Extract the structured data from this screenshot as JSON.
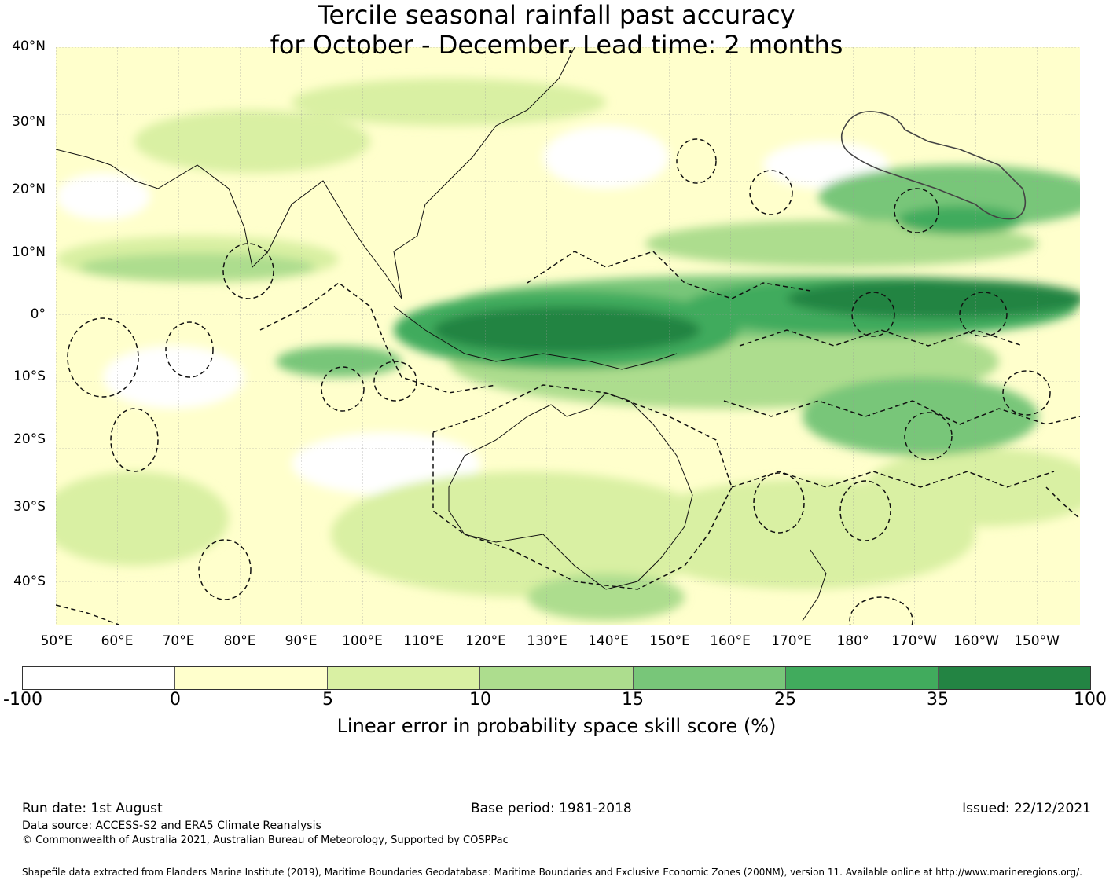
{
  "title": {
    "line1": "Tercile seasonal rainfall past accuracy",
    "line2": "for October - December. Lead time: 2 months"
  },
  "map": {
    "lat_labels": [
      "40°N",
      "30°N",
      "20°N",
      "10°N",
      "0°",
      "10°S",
      "20°S",
      "30°S",
      "40°S"
    ],
    "lon_labels": [
      "50°E",
      "60°E",
      "70°E",
      "80°E",
      "90°E",
      "100°E",
      "110°E",
      "120°E",
      "130°E",
      "140°E",
      "150°E",
      "160°E",
      "170°E",
      "180°",
      "170°W",
      "160°W",
      "150°W"
    ]
  },
  "colorbar": {
    "ticks": [
      "-100",
      "0",
      "5",
      "10",
      "15",
      "25",
      "35",
      "100"
    ],
    "colors": [
      "#ffffff",
      "#ffffcc",
      "#d9f0a3",
      "#addd8e",
      "#78c679",
      "#41ab5d",
      "#238443"
    ],
    "label": "Linear error in probability space skill score (%)"
  },
  "footer": {
    "run_date": "Run date: 1st August",
    "base_period": "Base period: 1981-2018",
    "issued": "Issued: 22/12/2021",
    "data_source": "Data source: ACCESS-S2 and ERA5 Climate Reanalysis",
    "copyright": "© Commonwealth of Australia 2021, Australian Bureau of Meteorology, Supported by COSPPac",
    "shapefile": "Shapefile data extracted from Flanders Marine Institute (2019), Maritime Boundaries Geodatabase: Maritime Boundaries and Exclusive Economic Zones (200NM), version 11. Available online at http://www.marineregions.org/."
  }
}
